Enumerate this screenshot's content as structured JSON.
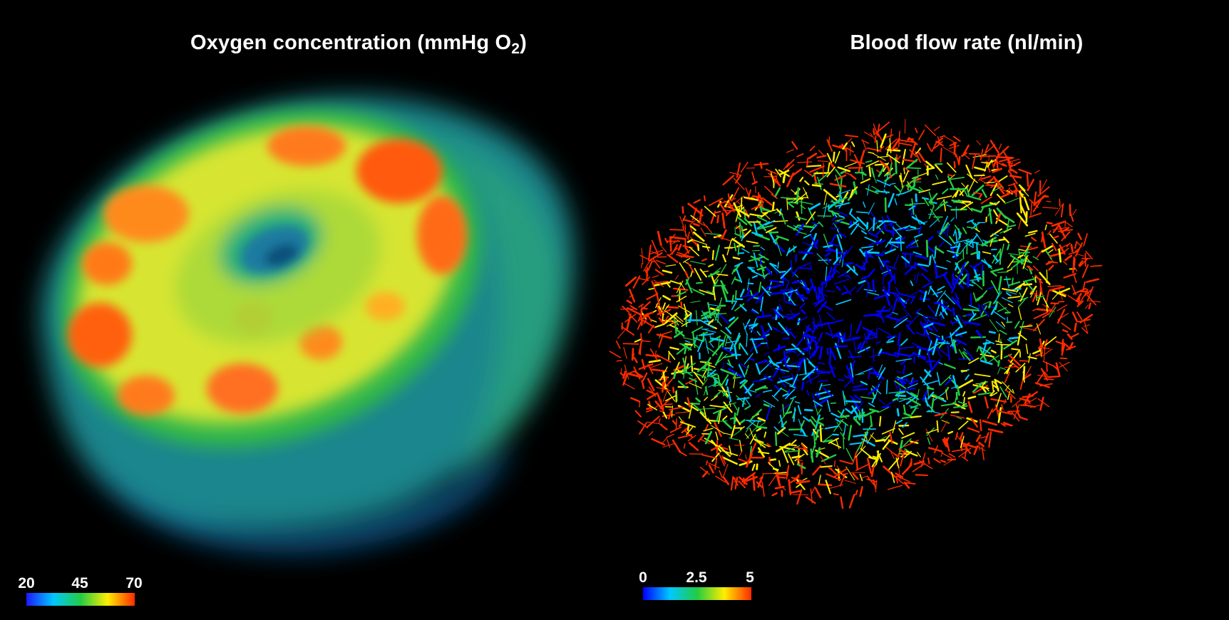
{
  "left_panel": {
    "title_main": "Oxygen concentration (mmHg O",
    "title_sub": "2",
    "title_close": ")",
    "colorbar": {
      "ticks": [
        "20",
        "45",
        "70"
      ],
      "colors": [
        "#1a1aff",
        "#00c8ff",
        "#22cc44",
        "#ffee00",
        "#ff2a00"
      ]
    }
  },
  "right_panel": {
    "title": "Blood flow rate (nl/min)",
    "colorbar": {
      "ticks": [
        "0",
        "2.5",
        "5"
      ],
      "colors": [
        "#0000ff",
        "#00c8ff",
        "#22cc44",
        "#ffee00",
        "#ff2a00"
      ]
    }
  },
  "colors": {
    "background": "#000000",
    "text": "#ffffff"
  }
}
